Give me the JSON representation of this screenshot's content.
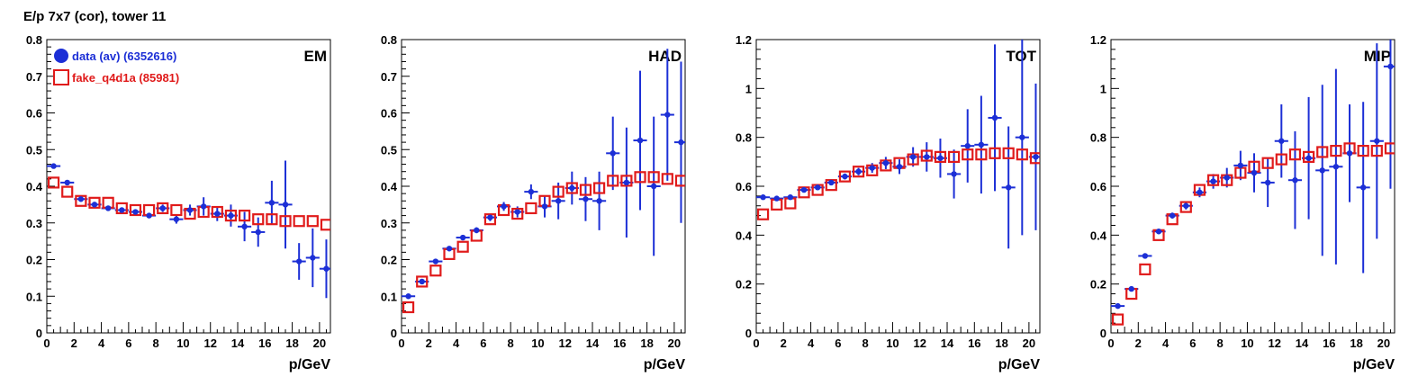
{
  "figure": {
    "title": "E/p 7x7 (cor), tower 11"
  },
  "legend": {
    "data_label": "data (av) (6352616)",
    "fake_label": "fake_q4d1a (85981)"
  },
  "colors": {
    "data": "#1c2fd6",
    "fake": "#e01b1b"
  },
  "chart_data": [
    {
      "type": "scatter",
      "label": "EM",
      "xlabel": "p/GeV",
      "xlim": [
        0,
        20.8
      ],
      "ylim": [
        0,
        0.8
      ],
      "xticks": [
        "0",
        "2",
        "4",
        "6",
        "8",
        "10",
        "12",
        "14",
        "16",
        "18",
        "20"
      ],
      "yticks": [
        "0",
        "0.1",
        "0.2",
        "0.3",
        "0.4",
        "0.5",
        "0.6",
        "0.7",
        "0.8"
      ],
      "x": [
        0.5,
        1.5,
        2.5,
        3.5,
        4.5,
        5.5,
        6.5,
        7.5,
        8.5,
        9.5,
        10.5,
        11.5,
        12.5,
        13.5,
        14.5,
        15.5,
        16.5,
        17.5,
        18.5,
        19.5,
        20.5
      ],
      "series": [
        {
          "name": "data (av) (6352616)",
          "values": [
            0.455,
            0.41,
            0.365,
            0.35,
            0.34,
            0.335,
            0.33,
            0.32,
            0.34,
            0.31,
            0.335,
            0.345,
            0.325,
            0.32,
            0.29,
            0.275,
            0.355,
            0.35,
            0.195,
            0.205,
            0.175
          ],
          "errors": [
            0.005,
            0.005,
            0.005,
            0.005,
            0.005,
            0.005,
            0.006,
            0.007,
            0.01,
            0.012,
            0.015,
            0.025,
            0.02,
            0.03,
            0.04,
            0.04,
            0.06,
            0.12,
            0.05,
            0.08,
            0.08
          ]
        },
        {
          "name": "fake_q4d1a (85981)",
          "values": [
            0.41,
            0.385,
            0.36,
            0.355,
            0.355,
            0.34,
            0.335,
            0.335,
            0.34,
            0.335,
            0.325,
            0.33,
            0.33,
            0.32,
            0.32,
            0.31,
            0.31,
            0.305,
            0.305,
            0.305,
            0.295
          ]
        }
      ]
    },
    {
      "type": "scatter",
      "label": "HAD",
      "xlabel": "p/GeV",
      "xlim": [
        0,
        20.8
      ],
      "ylim": [
        0,
        0.8
      ],
      "xticks": [
        "0",
        "2",
        "4",
        "6",
        "8",
        "10",
        "12",
        "14",
        "16",
        "18",
        "20"
      ],
      "yticks": [
        "0",
        "0.1",
        "0.2",
        "0.3",
        "0.4",
        "0.5",
        "0.6",
        "0.7",
        "0.8"
      ],
      "x": [
        0.5,
        1.5,
        2.5,
        3.5,
        4.5,
        5.5,
        6.5,
        7.5,
        8.5,
        9.5,
        10.5,
        11.5,
        12.5,
        13.5,
        14.5,
        15.5,
        16.5,
        17.5,
        18.5,
        19.5,
        20.5
      ],
      "series": [
        {
          "name": "data (av) (6352616)",
          "values": [
            0.1,
            0.14,
            0.195,
            0.23,
            0.26,
            0.28,
            0.315,
            0.345,
            0.33,
            0.385,
            0.345,
            0.36,
            0.395,
            0.365,
            0.36,
            0.49,
            0.41,
            0.525,
            0.4,
            0.595,
            0.52
          ],
          "errors": [
            0.005,
            0.005,
            0.005,
            0.005,
            0.006,
            0.008,
            0.01,
            0.012,
            0.015,
            0.02,
            0.03,
            0.05,
            0.045,
            0.06,
            0.08,
            0.1,
            0.15,
            0.19,
            0.19,
            0.18,
            0.22
          ]
        },
        {
          "name": "fake_q4d1a (85981)",
          "values": [
            0.07,
            0.14,
            0.17,
            0.215,
            0.235,
            0.265,
            0.31,
            0.335,
            0.325,
            0.34,
            0.36,
            0.385,
            0.395,
            0.39,
            0.395,
            0.415,
            0.415,
            0.425,
            0.425,
            0.42,
            0.415
          ]
        }
      ]
    },
    {
      "type": "scatter",
      "label": "TOT",
      "xlabel": "p/GeV",
      "xlim": [
        0,
        20.8
      ],
      "ylim": [
        0,
        1.2
      ],
      "xticks": [
        "0",
        "2",
        "4",
        "6",
        "8",
        "10",
        "12",
        "14",
        "16",
        "18",
        "20"
      ],
      "yticks": [
        "0",
        "0.2",
        "0.4",
        "0.6",
        "0.8",
        "1",
        "1.2"
      ],
      "x": [
        0.5,
        1.5,
        2.5,
        3.5,
        4.5,
        5.5,
        6.5,
        7.5,
        8.5,
        9.5,
        10.5,
        11.5,
        12.5,
        13.5,
        14.5,
        15.5,
        16.5,
        17.5,
        18.5,
        19.5,
        20.5
      ],
      "series": [
        {
          "name": "data (av) (6352616)",
          "values": [
            0.555,
            0.55,
            0.555,
            0.585,
            0.595,
            0.615,
            0.64,
            0.66,
            0.675,
            0.695,
            0.68,
            0.72,
            0.72,
            0.715,
            0.65,
            0.765,
            0.77,
            0.88,
            0.595,
            0.8,
            0.72
          ],
          "errors": [
            0.005,
            0.005,
            0.006,
            0.007,
            0.008,
            0.01,
            0.012,
            0.015,
            0.02,
            0.025,
            0.03,
            0.04,
            0.06,
            0.08,
            0.1,
            0.15,
            0.2,
            0.3,
            0.25,
            0.4,
            0.3
          ]
        },
        {
          "name": "fake_q4d1a (85981)",
          "values": [
            0.485,
            0.525,
            0.53,
            0.575,
            0.585,
            0.605,
            0.64,
            0.66,
            0.665,
            0.685,
            0.695,
            0.71,
            0.725,
            0.72,
            0.72,
            0.73,
            0.73,
            0.735,
            0.735,
            0.73,
            0.715
          ]
        }
      ]
    },
    {
      "type": "scatter",
      "label": "MIP",
      "xlabel": "p/GeV",
      "xlim": [
        0,
        20.8
      ],
      "ylim": [
        0,
        1.2
      ],
      "xticks": [
        "0",
        "2",
        "4",
        "6",
        "8",
        "10",
        "12",
        "14",
        "16",
        "18",
        "20"
      ],
      "yticks": [
        "0",
        "0.2",
        "0.4",
        "0.6",
        "0.8",
        "1",
        "1.2"
      ],
      "x": [
        0.5,
        1.5,
        2.5,
        3.5,
        4.5,
        5.5,
        6.5,
        7.5,
        8.5,
        9.5,
        10.5,
        11.5,
        12.5,
        13.5,
        14.5,
        15.5,
        16.5,
        17.5,
        18.5,
        19.5,
        20.5
      ],
      "series": [
        {
          "name": "data (av) (6352616)",
          "values": [
            0.11,
            0.18,
            0.315,
            0.415,
            0.48,
            0.52,
            0.575,
            0.62,
            0.635,
            0.685,
            0.655,
            0.615,
            0.785,
            0.625,
            0.715,
            0.665,
            0.68,
            0.735,
            0.595,
            0.785,
            1.09
          ],
          "errors": [
            0.005,
            0.006,
            0.008,
            0.01,
            0.012,
            0.015,
            0.02,
            0.03,
            0.04,
            0.06,
            0.08,
            0.1,
            0.15,
            0.2,
            0.25,
            0.35,
            0.4,
            0.2,
            0.35,
            0.4,
            0.5
          ]
        },
        {
          "name": "fake_q4d1a (85981)",
          "values": [
            0.055,
            0.16,
            0.26,
            0.4,
            0.465,
            0.515,
            0.585,
            0.625,
            0.625,
            0.655,
            0.68,
            0.695,
            0.71,
            0.73,
            0.72,
            0.74,
            0.745,
            0.755,
            0.745,
            0.745,
            0.755
          ]
        }
      ]
    }
  ]
}
